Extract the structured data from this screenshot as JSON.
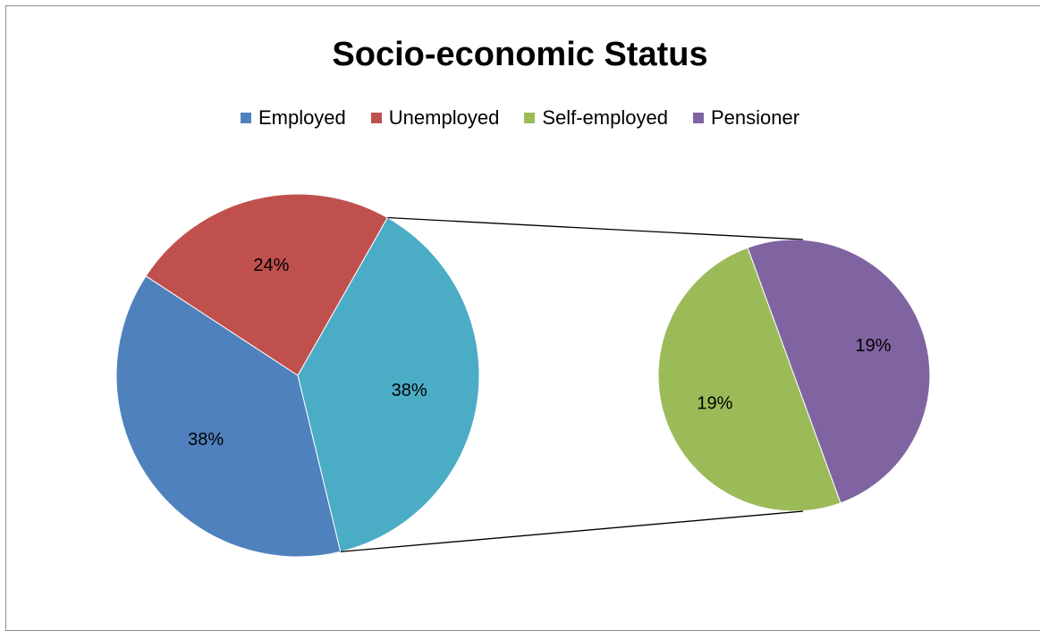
{
  "chart_data": {
    "type": "pie",
    "subtype": "pie-of-pie",
    "title": "Socio-economic Status",
    "legend_position": "top",
    "legend": [
      {
        "name": "Employed",
        "color": "#4F81BD"
      },
      {
        "name": "Unemployed",
        "color": "#C0504D"
      },
      {
        "name": "Self-employed",
        "color": "#9BBB59"
      },
      {
        "name": "Pensioner",
        "color": "#8064A2"
      }
    ],
    "main_pie": {
      "slices": [
        {
          "label": "38%",
          "value": 38,
          "color": "#4F81BD"
        },
        {
          "label": "24%",
          "value": 24,
          "color": "#C0504D"
        },
        {
          "label": "38%",
          "value": 38,
          "color": "#4BACC6"
        }
      ]
    },
    "secondary_pie": {
      "slices": [
        {
          "label": "19%",
          "value": 19,
          "color": "#8064A2"
        },
        {
          "label": "19%",
          "value": 19,
          "color": "#9BBB59"
        }
      ]
    }
  }
}
